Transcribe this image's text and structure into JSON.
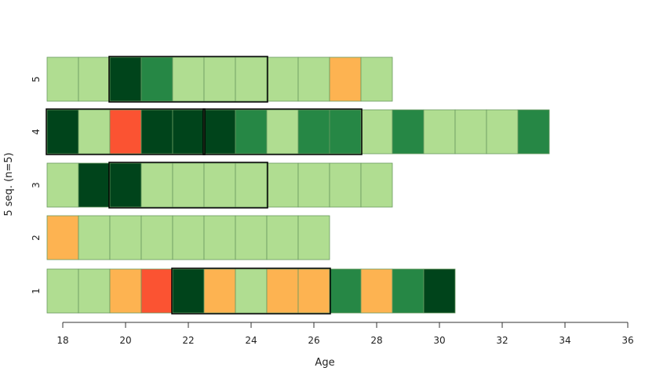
{
  "chart_data": {
    "type": "sequence-index-plot",
    "xlabel": "Age",
    "ylabel": "5 seq. (n=5)",
    "xlim": [
      17.5,
      36
    ],
    "x_ticks": [
      18,
      20,
      22,
      24,
      26,
      28,
      30,
      32,
      34,
      36
    ],
    "y_ticks": [
      "1",
      "2",
      "3",
      "4",
      "5"
    ],
    "state_colors": {
      "L": "#b0dd91",
      "M": "#268745",
      "D": "#00441b",
      "O": "#fdb351",
      "R": "#fb5332"
    },
    "sequences": [
      {
        "id": "1",
        "start_age": 17.5,
        "states": [
          "L",
          "L",
          "O",
          "R",
          "D",
          "O",
          "L",
          "O",
          "O",
          "M",
          "O",
          "M",
          "D"
        ]
      },
      {
        "id": "2",
        "start_age": 17.5,
        "states": [
          "O",
          "L",
          "L",
          "L",
          "L",
          "L",
          "L",
          "L",
          "L"
        ]
      },
      {
        "id": "3",
        "start_age": 17.5,
        "states": [
          "L",
          "D",
          "D",
          "L",
          "L",
          "L",
          "L",
          "L",
          "L",
          "L",
          "L"
        ]
      },
      {
        "id": "4",
        "start_age": 17.5,
        "states": [
          "D",
          "L",
          "R",
          "D",
          "D",
          "D",
          "M",
          "L",
          "M",
          "M",
          "L",
          "M",
          "L",
          "L",
          "L",
          "M"
        ]
      },
      {
        "id": "5",
        "start_age": 17.5,
        "states": [
          "L",
          "L",
          "D",
          "M",
          "L",
          "L",
          "L",
          "L",
          "L",
          "O",
          "L"
        ]
      }
    ],
    "highlights": [
      {
        "seq": "1",
        "from": 21.5,
        "to": 26.5
      },
      {
        "seq": "3",
        "from": 19.5,
        "to": 24.5
      },
      {
        "seq": "4",
        "from": 17.5,
        "to": 22.5
      },
      {
        "seq": "4",
        "from": 22.5,
        "to": 27.5
      },
      {
        "seq": "5",
        "from": 19.5,
        "to": 24.5
      }
    ]
  }
}
